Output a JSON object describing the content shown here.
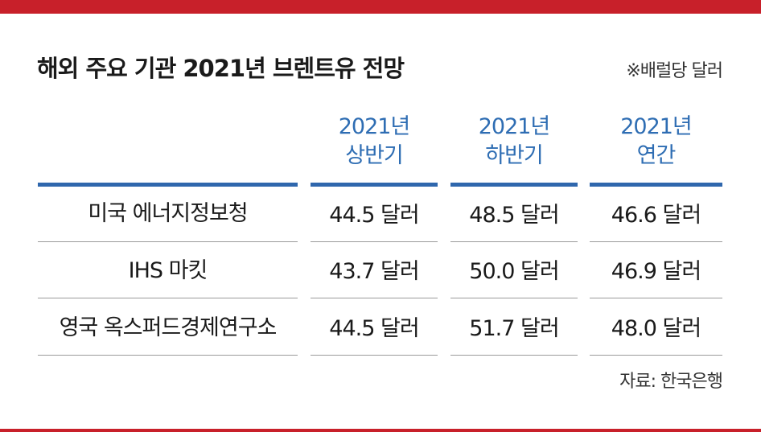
{
  "title": "해외 주요 기관 2021년 브렌트유 전망",
  "unit_note": "※배럴당 달러",
  "columns": [
    {
      "line1": "2021년",
      "line2": "상반기"
    },
    {
      "line1": "2021년",
      "line2": "하반기"
    },
    {
      "line1": "2021년",
      "line2": "연간"
    }
  ],
  "rows": [
    {
      "org": "미국 에너지정보청",
      "values": [
        "44.5 달러",
        "48.5 달러",
        "46.6 달러"
      ]
    },
    {
      "org": "IHS 마킷",
      "values": [
        "43.7 달러",
        "50.0 달러",
        "46.9 달러"
      ]
    },
    {
      "org": "영국 옥스퍼드경제연구소",
      "values": [
        "44.5 달러",
        "51.7 달러",
        "48.0 달러"
      ]
    }
  ],
  "source": "자료: 한국은행",
  "colors": {
    "accent_red": "#c8202a",
    "header_blue": "#2e6db3"
  }
}
